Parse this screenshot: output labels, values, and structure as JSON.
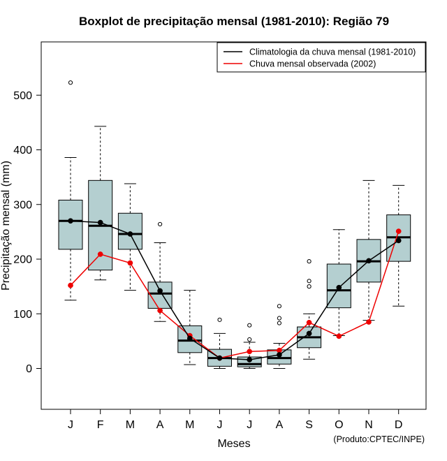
{
  "chart_data": {
    "type": "boxplot",
    "title": "Boxplot de precipitação mensal (1981-2010): Região 79",
    "xlabel": "Meses",
    "ylabel": "Precipitação mensal (mm)",
    "ylim": [
      -75,
      600
    ],
    "yticks": [
      0,
      100,
      200,
      300,
      400,
      500
    ],
    "categories": [
      "J",
      "F",
      "M",
      "A",
      "M",
      "J",
      "J",
      "A",
      "S",
      "O",
      "N",
      "D"
    ],
    "boxes": [
      {
        "month": "J",
        "whisker_low": 125,
        "q1": 218,
        "median": 270,
        "q3": 308,
        "whisker_high": 386,
        "outliers": [
          523
        ]
      },
      {
        "month": "F",
        "whisker_low": 162,
        "q1": 180,
        "median": 261,
        "q3": 344,
        "whisker_high": 443,
        "outliers": []
      },
      {
        "month": "M",
        "whisker_low": 143,
        "q1": 218,
        "median": 246,
        "q3": 284,
        "whisker_high": 338,
        "outliers": []
      },
      {
        "month": "A",
        "whisker_low": 86,
        "q1": 110,
        "median": 137,
        "q3": 158,
        "whisker_high": 230,
        "outliers": [
          264
        ]
      },
      {
        "month": "M",
        "whisker_low": 7,
        "q1": 29,
        "median": 51,
        "q3": 78,
        "whisker_high": 143,
        "outliers": []
      },
      {
        "month": "J",
        "whisker_low": 0,
        "q1": 4,
        "median": 19,
        "q3": 35,
        "whisker_high": 64,
        "outliers": [
          89
        ]
      },
      {
        "month": "J",
        "whisker_low": 0,
        "q1": 3,
        "median": 8,
        "q3": 21,
        "whisker_high": 48,
        "outliers": [
          53,
          79
        ]
      },
      {
        "month": "A",
        "whisker_low": 0,
        "q1": 8,
        "median": 19,
        "q3": 34,
        "whisker_high": 46,
        "outliers": [
          83,
          92,
          114
        ]
      },
      {
        "month": "S",
        "whisker_low": 17,
        "q1": 38,
        "median": 57,
        "q3": 76,
        "whisker_high": 100,
        "outliers": [
          150,
          160,
          196
        ]
      },
      {
        "month": "O",
        "whisker_low": 60,
        "q1": 111,
        "median": 143,
        "q3": 191,
        "whisker_high": 254,
        "outliers": []
      },
      {
        "month": "N",
        "whisker_low": 88,
        "q1": 158,
        "median": 196,
        "q3": 236,
        "whisker_high": 344,
        "outliers": []
      },
      {
        "month": "D",
        "whisker_low": 114,
        "q1": 196,
        "median": 240,
        "q3": 281,
        "whisker_high": 335,
        "outliers": []
      }
    ],
    "series": [
      {
        "name": "Climatologia da chuva mensal (1981-2010)",
        "color": "#000000",
        "values": [
          270,
          267,
          246,
          142,
          55,
          19,
          16,
          25,
          64,
          148,
          197,
          234
        ]
      },
      {
        "name": "Chuva mensal observada (2002)",
        "color": "#ee0000",
        "values": [
          152,
          209,
          193,
          106,
          60,
          19,
          31,
          33,
          84,
          59,
          85,
          251
        ]
      }
    ],
    "box_fill": "#b4cfd0",
    "legend_position": "top-right",
    "grid": false
  },
  "credit": "(Produto:CPTEC/INPE)"
}
